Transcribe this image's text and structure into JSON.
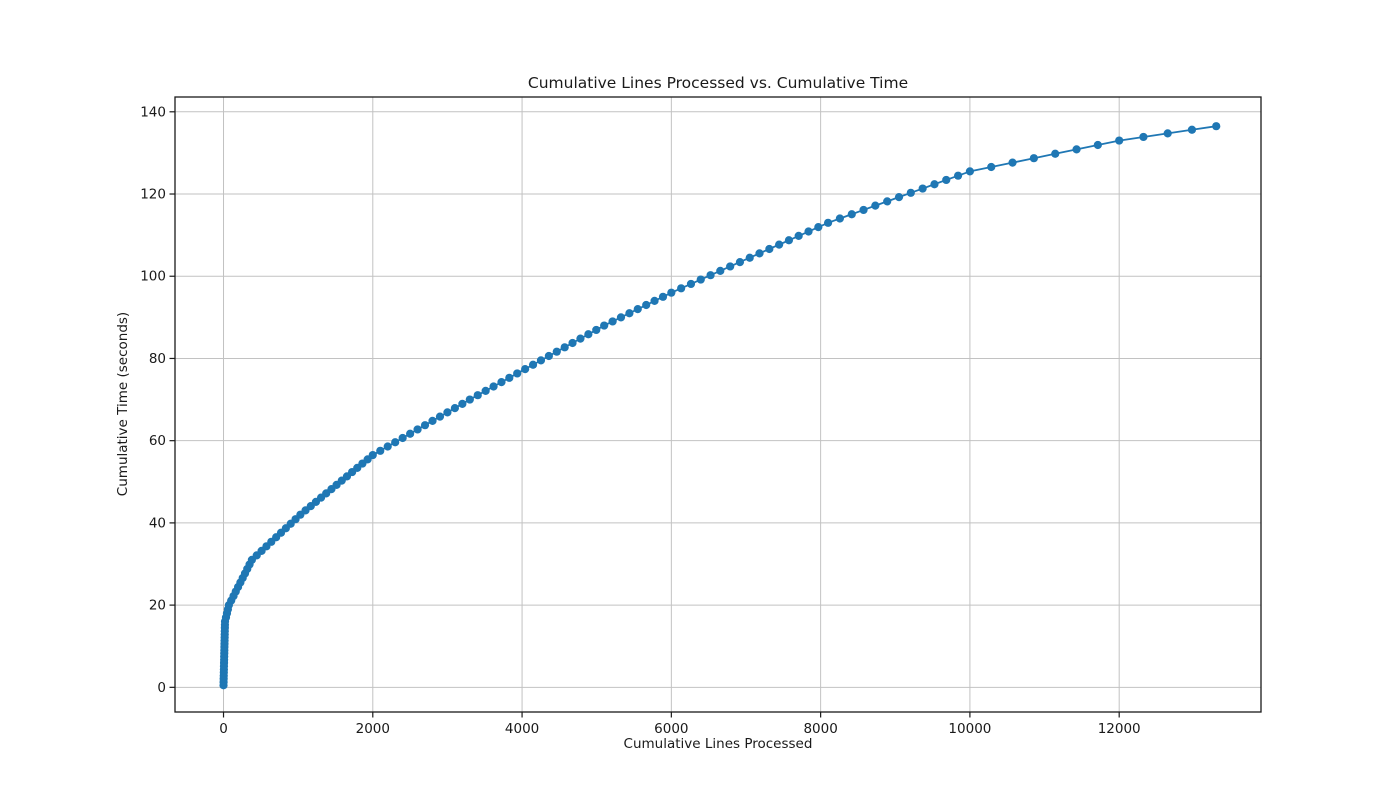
{
  "figure": {
    "background": "#ffffff"
  },
  "chart_data": {
    "type": "line",
    "title": "Cumulative Lines Processed vs. Cumulative Time",
    "xlabel": "Cumulative Lines Processed",
    "ylabel": "Cumulative Time (seconds)",
    "xlim": [
      -650,
      13900
    ],
    "ylim": [
      -6,
      143.6
    ],
    "xticks": [
      0,
      2000,
      4000,
      6000,
      8000,
      10000,
      12000
    ],
    "yticks": [
      0,
      20,
      40,
      60,
      80,
      100,
      120,
      140
    ],
    "grid": true,
    "legend": "none",
    "line_color": "#1f77b4",
    "marker": "circle",
    "marker_radius": 4.1,
    "line_width": 1.8,
    "grid_color": "#c2c2c2",
    "axis_color": "#1a1a1a",
    "series": [
      {
        "name": "cumulative-time-vs-lines",
        "points": [
          [
            0,
            0.5
          ],
          [
            1,
            1.28
          ],
          [
            2,
            2.05
          ],
          [
            3,
            2.83
          ],
          [
            4,
            3.6
          ],
          [
            5,
            4.38
          ],
          [
            6,
            5.15
          ],
          [
            7,
            5.93
          ],
          [
            8,
            6.7
          ],
          [
            9,
            7.48
          ],
          [
            10,
            8.25
          ],
          [
            11,
            9.03
          ],
          [
            12,
            9.8
          ],
          [
            13,
            10.58
          ],
          [
            14,
            11.35
          ],
          [
            15,
            12.13
          ],
          [
            16,
            12.9
          ],
          [
            17,
            13.68
          ],
          [
            18,
            14.45
          ],
          [
            19,
            15.23
          ],
          [
            20,
            16
          ],
          [
            33,
            17
          ],
          [
            46,
            18
          ],
          [
            59,
            19
          ],
          [
            72,
            20
          ],
          [
            103,
            21.1
          ],
          [
            134,
            22.2
          ],
          [
            164,
            23.3
          ],
          [
            195,
            24.4
          ],
          [
            226,
            25.5
          ],
          [
            257,
            26.6
          ],
          [
            288,
            27.7
          ],
          [
            318,
            28.8
          ],
          [
            349,
            29.9
          ],
          [
            380,
            31
          ],
          [
            445,
            32.1
          ],
          [
            510,
            33.2
          ],
          [
            575,
            34.3
          ],
          [
            640,
            35.4
          ],
          [
            705,
            36.5
          ],
          [
            770,
            37.6
          ],
          [
            835,
            38.7
          ],
          [
            900,
            39.8
          ],
          [
            965,
            40.9
          ],
          [
            1030,
            42
          ],
          [
            1099,
            43.04
          ],
          [
            1169,
            44.07
          ],
          [
            1238,
            45.11
          ],
          [
            1307,
            46.14
          ],
          [
            1376,
            47.18
          ],
          [
            1446,
            48.21
          ],
          [
            1515,
            49.25
          ],
          [
            1584,
            50.29
          ],
          [
            1654,
            51.32
          ],
          [
            1723,
            52.36
          ],
          [
            1792,
            53.39
          ],
          [
            1861,
            54.43
          ],
          [
            1931,
            55.46
          ],
          [
            2000,
            56.5
          ],
          [
            2100,
            57.54
          ],
          [
            2200,
            58.58
          ],
          [
            2300,
            59.62
          ],
          [
            2400,
            60.65
          ],
          [
            2500,
            61.69
          ],
          [
            2600,
            62.73
          ],
          [
            2700,
            63.77
          ],
          [
            2800,
            64.81
          ],
          [
            2900,
            65.85
          ],
          [
            3000,
            66.88
          ],
          [
            3100,
            67.92
          ],
          [
            3200,
            68.96
          ],
          [
            3300,
            70
          ],
          [
            3406,
            71.06
          ],
          [
            3512,
            72.12
          ],
          [
            3618,
            73.18
          ],
          [
            3724,
            74.24
          ],
          [
            3829,
            75.29
          ],
          [
            3935,
            76.35
          ],
          [
            4041,
            77.41
          ],
          [
            4147,
            78.47
          ],
          [
            4253,
            79.53
          ],
          [
            4359,
            80.59
          ],
          [
            4465,
            81.65
          ],
          [
            4571,
            82.71
          ],
          [
            4676,
            83.76
          ],
          [
            4782,
            84.82
          ],
          [
            4888,
            85.88
          ],
          [
            4994,
            86.94
          ],
          [
            5100,
            88
          ],
          [
            5213,
            89
          ],
          [
            5325,
            90
          ],
          [
            5438,
            91
          ],
          [
            5550,
            92
          ],
          [
            5663,
            93
          ],
          [
            5775,
            94
          ],
          [
            5888,
            95
          ],
          [
            6000,
            96
          ],
          [
            6131,
            97.06
          ],
          [
            6263,
            98.13
          ],
          [
            6394,
            99.19
          ],
          [
            6525,
            100.25
          ],
          [
            6656,
            101.31
          ],
          [
            6788,
            102.38
          ],
          [
            6919,
            103.44
          ],
          [
            7050,
            104.5
          ],
          [
            7181,
            105.56
          ],
          [
            7313,
            106.63
          ],
          [
            7444,
            107.69
          ],
          [
            7575,
            108.75
          ],
          [
            7706,
            109.81
          ],
          [
            7838,
            110.88
          ],
          [
            7969,
            111.94
          ],
          [
            8100,
            113
          ],
          [
            8258,
            114.04
          ],
          [
            8417,
            115.08
          ],
          [
            8575,
            116.13
          ],
          [
            8733,
            117.17
          ],
          [
            8892,
            118.21
          ],
          [
            9050,
            119.25
          ],
          [
            9208,
            120.29
          ],
          [
            9367,
            121.33
          ],
          [
            9525,
            122.38
          ],
          [
            9683,
            123.42
          ],
          [
            9842,
            124.46
          ],
          [
            10000,
            125.5
          ],
          [
            10286,
            126.57
          ],
          [
            10571,
            127.64
          ],
          [
            10857,
            128.71
          ],
          [
            11143,
            129.79
          ],
          [
            11429,
            130.86
          ],
          [
            11714,
            131.93
          ],
          [
            12000,
            133
          ],
          [
            12325,
            133.88
          ],
          [
            12650,
            134.75
          ],
          [
            12975,
            135.63
          ],
          [
            13300,
            136.5
          ]
        ]
      }
    ]
  }
}
